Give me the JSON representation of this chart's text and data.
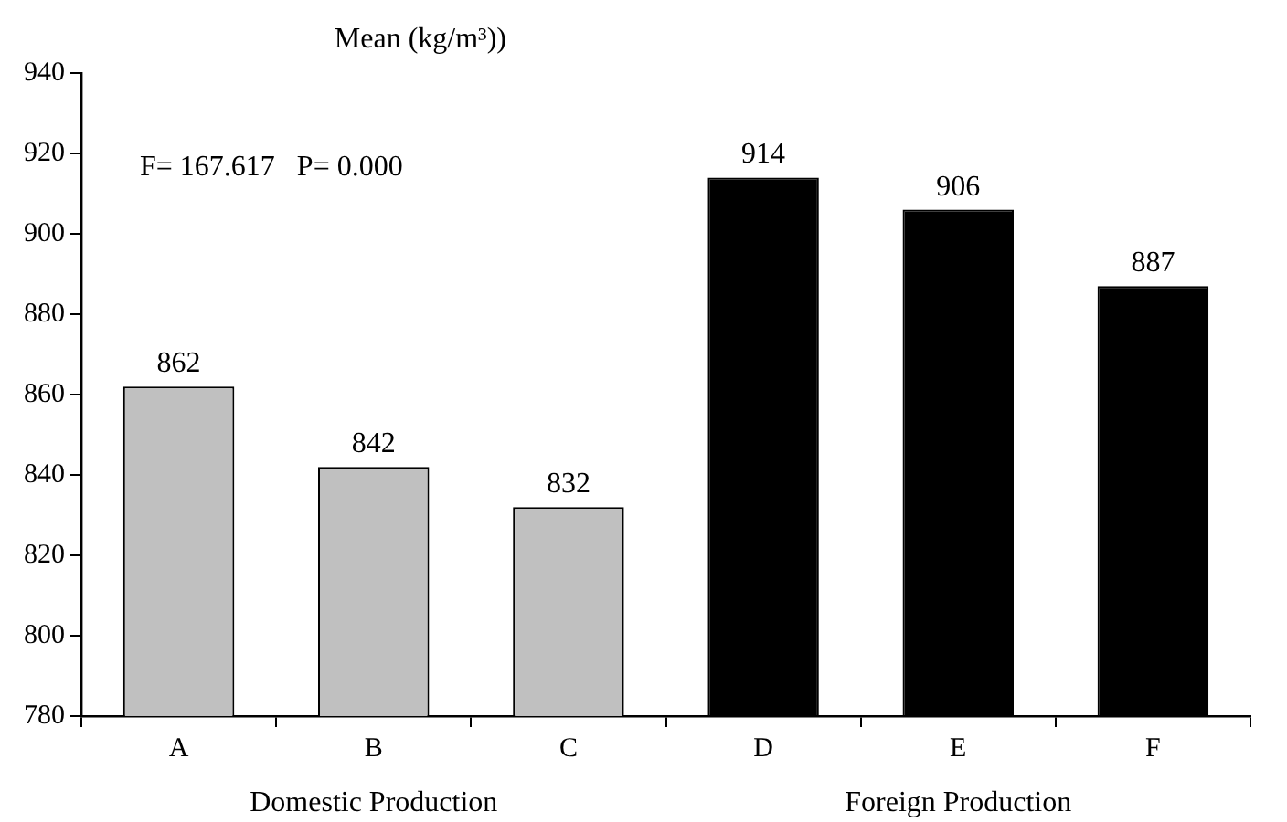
{
  "chart_data": {
    "type": "bar",
    "title": "Mean (kg/m³))",
    "categories": [
      "A",
      "B",
      "C",
      "D",
      "E",
      "F"
    ],
    "series": [
      {
        "name": "Domestic Production",
        "color": "#c0c0c0",
        "values": [
          862,
          842,
          832,
          null,
          null,
          null
        ]
      },
      {
        "name": "Foreign Production",
        "color": "#000000",
        "values": [
          null,
          null,
          null,
          914,
          906,
          887
        ]
      }
    ],
    "ylim": [
      780,
      940
    ],
    "yticks": [
      780,
      800,
      820,
      840,
      860,
      880,
      900,
      920,
      940
    ],
    "grid": false,
    "legend": false,
    "data_labels": true,
    "annotations": [
      "F= 167.617   P= 0.000"
    ]
  }
}
